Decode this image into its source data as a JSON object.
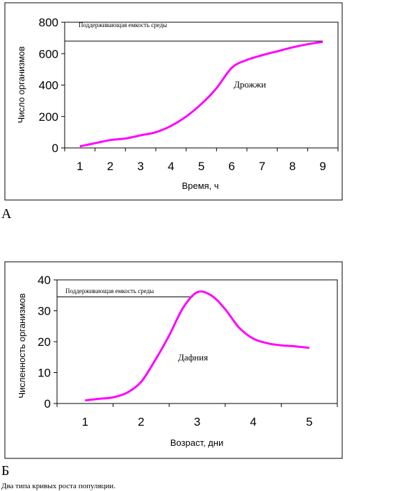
{
  "chart_data": [
    {
      "type": "line",
      "panel_letter": "А",
      "ylabel": "Число организмов",
      "xlabel": "Время, ч",
      "ylim": [
        0,
        800
      ],
      "xlim": [
        0.5,
        9.5
      ],
      "yticks": [
        0,
        200,
        400,
        600,
        800
      ],
      "xticks": [
        1,
        2,
        3,
        4,
        5,
        6,
        7,
        8,
        9
      ],
      "ytick_labels": [
        "0",
        "200",
        "400",
        "600",
        "800"
      ],
      "xtick_labels": [
        "1",
        "2",
        "3",
        "4",
        "5",
        "6",
        "7",
        "8",
        "9"
      ],
      "series_label": "Дрожжи",
      "reference_line": {
        "label": "Поддерживающая емкость среды",
        "y": 680
      },
      "series": [
        {
          "color": "#ff00ff",
          "x": [
            1,
            1.5,
            2,
            2.5,
            3,
            3.5,
            4,
            4.5,
            5,
            5.5,
            6,
            6.5,
            7,
            7.5,
            8,
            8.5,
            9
          ],
          "y": [
            10,
            30,
            50,
            60,
            80,
            100,
            140,
            200,
            280,
            380,
            510,
            560,
            590,
            615,
            640,
            660,
            675
          ]
        }
      ],
      "grid": false
    },
    {
      "type": "line",
      "panel_letter": "Б",
      "ylabel": "Численность организмов",
      "xlabel": "Возраст, дни",
      "ylim": [
        0,
        40
      ],
      "xlim": [
        0.5,
        5.5
      ],
      "yticks": [
        0,
        10,
        20,
        30,
        40
      ],
      "xticks": [
        1,
        2,
        3,
        4,
        5
      ],
      "ytick_labels": [
        "0",
        "10",
        "20",
        "30",
        "40"
      ],
      "xtick_labels": [
        "1",
        "2",
        "3",
        "4",
        "5"
      ],
      "series_label": "Дафния",
      "reference_line": {
        "label": "Поддерживающая емкость среды",
        "y": 34.5
      },
      "series": [
        {
          "color": "#ff00ff",
          "x": [
            1,
            1.25,
            1.5,
            1.75,
            2,
            2.25,
            2.5,
            2.75,
            3,
            3.25,
            3.5,
            3.75,
            4,
            4.25,
            4.5,
            4.75,
            5
          ],
          "y": [
            1,
            1.5,
            2,
            3.5,
            7,
            14,
            22,
            31,
            36,
            35,
            30.5,
            24.5,
            21,
            19.5,
            18.8,
            18.5,
            18
          ]
        }
      ],
      "grid": false
    }
  ],
  "caption": "Два типа кривых роста популяции."
}
